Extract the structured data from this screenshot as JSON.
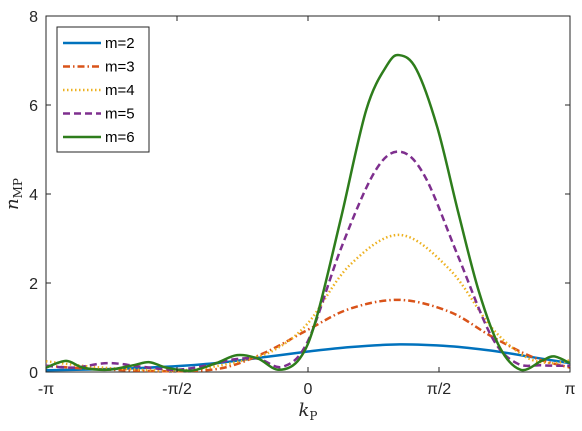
{
  "chart_data": {
    "type": "line",
    "xlabel": {
      "main": "k",
      "sub": "P"
    },
    "ylabel": {
      "main": "n",
      "sub": "MP"
    },
    "xlim": [
      -3.14159,
      3.14159
    ],
    "ylim": [
      0,
      8
    ],
    "xticks": [
      {
        "value": -3.14159,
        "label": "-π"
      },
      {
        "value": -1.5708,
        "label": "-π/2"
      },
      {
        "value": 0,
        "label": "0"
      },
      {
        "value": 1.5708,
        "label": "π/2"
      },
      {
        "value": 3.14159,
        "label": "π"
      }
    ],
    "yticks": [
      {
        "value": 0,
        "label": "0"
      },
      {
        "value": 2,
        "label": "2"
      },
      {
        "value": 4,
        "label": "4"
      },
      {
        "value": 6,
        "label": "6"
      },
      {
        "value": 8,
        "label": "8"
      }
    ],
    "grid": false,
    "legend_position": "top-left",
    "series": [
      {
        "name": "m=2",
        "color": "#0072BD",
        "dash": "solid",
        "peak_x": 1.1,
        "peak_y": 0.62,
        "points": [
          [
            -3.14,
            0.04
          ],
          [
            -2.5,
            0.06
          ],
          [
            -2.0,
            0.09
          ],
          [
            -1.5,
            0.14
          ],
          [
            -1.0,
            0.22
          ],
          [
            -0.5,
            0.34
          ],
          [
            0.0,
            0.46
          ],
          [
            0.5,
            0.56
          ],
          [
            1.1,
            0.62
          ],
          [
            1.7,
            0.58
          ],
          [
            2.2,
            0.48
          ],
          [
            2.7,
            0.33
          ],
          [
            3.14,
            0.2
          ]
        ]
      },
      {
        "name": "m=3",
        "color": "#D95319",
        "dash": "dashdot",
        "peak_x": 1.1,
        "peak_y": 1.62,
        "points": [
          [
            -3.14,
            0.14
          ],
          [
            -2.6,
            0.07
          ],
          [
            -2.0,
            0.03
          ],
          [
            -1.5,
            0.02
          ],
          [
            -1.0,
            0.1
          ],
          [
            -0.5,
            0.45
          ],
          [
            0.0,
            0.95
          ],
          [
            0.5,
            1.42
          ],
          [
            1.1,
            1.62
          ],
          [
            1.7,
            1.35
          ],
          [
            2.2,
            0.8
          ],
          [
            2.7,
            0.33
          ],
          [
            3.14,
            0.1
          ]
        ]
      },
      {
        "name": "m=4",
        "color": "#EDB120",
        "dash": "dotted",
        "peak_x": 1.1,
        "peak_y": 3.08,
        "points": [
          [
            -3.14,
            0.24
          ],
          [
            -2.6,
            0.12
          ],
          [
            -2.0,
            0.05
          ],
          [
            -1.5,
            0.04
          ],
          [
            -1.2,
            0.1
          ],
          [
            -0.8,
            0.25
          ],
          [
            -0.4,
            0.5
          ],
          [
            0.0,
            1.1
          ],
          [
            0.5,
            2.4
          ],
          [
            1.1,
            3.08
          ],
          [
            1.7,
            2.3
          ],
          [
            2.2,
            1.0
          ],
          [
            2.6,
            0.35
          ],
          [
            2.9,
            0.2
          ],
          [
            3.14,
            0.26
          ]
        ]
      },
      {
        "name": "m=5",
        "color": "#7E2F8E",
        "dash": "dashed",
        "peak_x": 1.1,
        "peak_y": 4.95,
        "points": [
          [
            -3.14,
            0.14
          ],
          [
            -2.8,
            0.1
          ],
          [
            -2.4,
            0.2
          ],
          [
            -2.0,
            0.12
          ],
          [
            -1.6,
            0.05
          ],
          [
            -1.2,
            0.15
          ],
          [
            -0.9,
            0.28
          ],
          [
            -0.6,
            0.3
          ],
          [
            -0.3,
            0.12
          ],
          [
            0.0,
            0.7
          ],
          [
            0.4,
            2.8
          ],
          [
            0.8,
            4.5
          ],
          [
            1.1,
            4.95
          ],
          [
            1.4,
            4.4
          ],
          [
            1.8,
            2.6
          ],
          [
            2.2,
            0.8
          ],
          [
            2.5,
            0.2
          ],
          [
            2.8,
            0.15
          ],
          [
            3.14,
            0.14
          ]
        ]
      },
      {
        "name": "m=6",
        "color": "#2E7D1C",
        "dash": "solid",
        "peak_x": 1.1,
        "peak_y": 7.12,
        "points": [
          [
            -3.14,
            0.1
          ],
          [
            -2.9,
            0.25
          ],
          [
            -2.7,
            0.1
          ],
          [
            -2.4,
            0.05
          ],
          [
            -2.1,
            0.15
          ],
          [
            -1.9,
            0.22
          ],
          [
            -1.7,
            0.1
          ],
          [
            -1.4,
            0.03
          ],
          [
            -1.1,
            0.2
          ],
          [
            -0.85,
            0.38
          ],
          [
            -0.6,
            0.3
          ],
          [
            -0.35,
            0.05
          ],
          [
            -0.1,
            0.3
          ],
          [
            0.1,
            1.2
          ],
          [
            0.4,
            3.5
          ],
          [
            0.7,
            5.9
          ],
          [
            0.95,
            6.9
          ],
          [
            1.1,
            7.12
          ],
          [
            1.3,
            6.8
          ],
          [
            1.55,
            5.5
          ],
          [
            1.8,
            3.6
          ],
          [
            2.05,
            1.8
          ],
          [
            2.3,
            0.55
          ],
          [
            2.55,
            0.05
          ],
          [
            2.8,
            0.25
          ],
          [
            2.95,
            0.35
          ],
          [
            3.14,
            0.2
          ]
        ]
      }
    ]
  }
}
